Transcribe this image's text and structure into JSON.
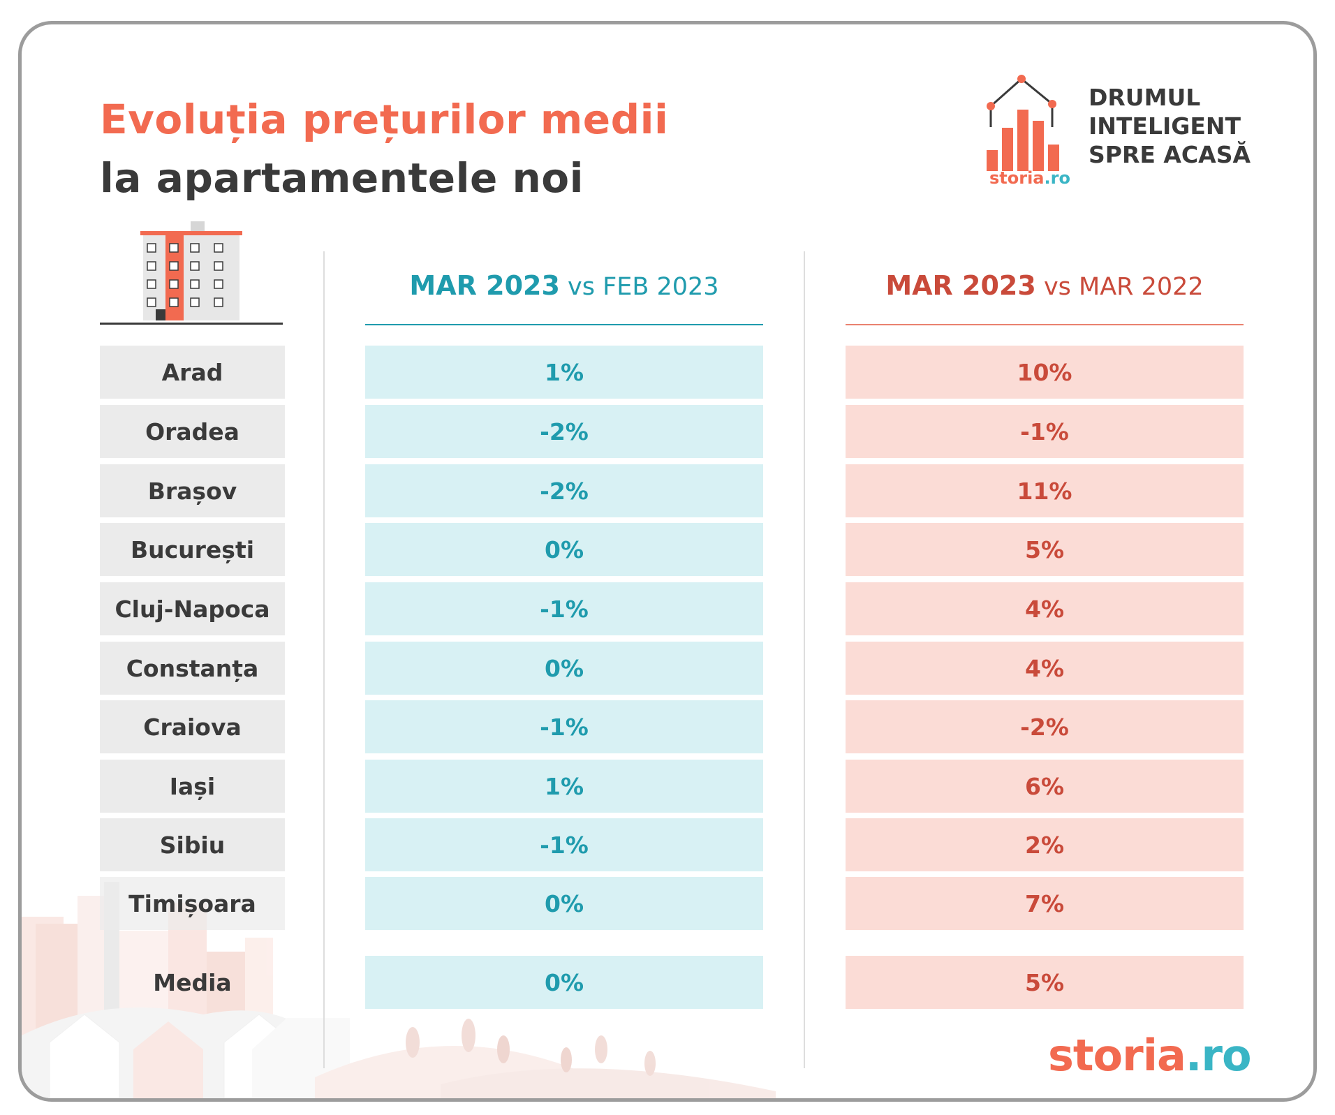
{
  "title": {
    "line1": "Evoluția prețurilor medii",
    "line2": "la apartamentele noi"
  },
  "logo": {
    "tagline": [
      "DRUMUL",
      "INTELIGENT",
      "SPRE ACASĂ"
    ],
    "small_word_main": "storia",
    "small_word_tld": ".ro",
    "icon": "house-bar-chart-icon"
  },
  "headers": {
    "city_icon": "apartment-building-icon",
    "mom_strong": "MAR 2023",
    "mom_vs": " vs FEB 2023",
    "yoy_strong": "MAR 2023",
    "yoy_vs": " vs MAR 2022"
  },
  "rows": [
    {
      "city": "Arad",
      "mom": "1%",
      "yoy": "10%"
    },
    {
      "city": "Oradea",
      "mom": "-2%",
      "yoy": "-1%"
    },
    {
      "city": "Brașov",
      "mom": "-2%",
      "yoy": "11%"
    },
    {
      "city": "București",
      "mom": "0%",
      "yoy": "5%"
    },
    {
      "city": "Cluj-Napoca",
      "mom": "-1%",
      "yoy": "4%"
    },
    {
      "city": "Constanța",
      "mom": "0%",
      "yoy": "4%"
    },
    {
      "city": "Craiova",
      "mom": "-1%",
      "yoy": "-2%"
    },
    {
      "city": "Iași",
      "mom": "1%",
      "yoy": "6%"
    },
    {
      "city": "Sibiu",
      "mom": "-1%",
      "yoy": "2%"
    },
    {
      "city": "Timișoara",
      "mom": "0%",
      "yoy": "7%"
    }
  ],
  "average": {
    "city": "Media",
    "mom": "0%",
    "yoy": "5%"
  },
  "footer": {
    "brand_main": "storia",
    "brand_tld": ".ro"
  },
  "colors": {
    "accent_orange": "#f26a50",
    "accent_teal": "#1f9bad",
    "accent_red": "#c94a3a",
    "text_dark": "#3a3a3a"
  }
}
